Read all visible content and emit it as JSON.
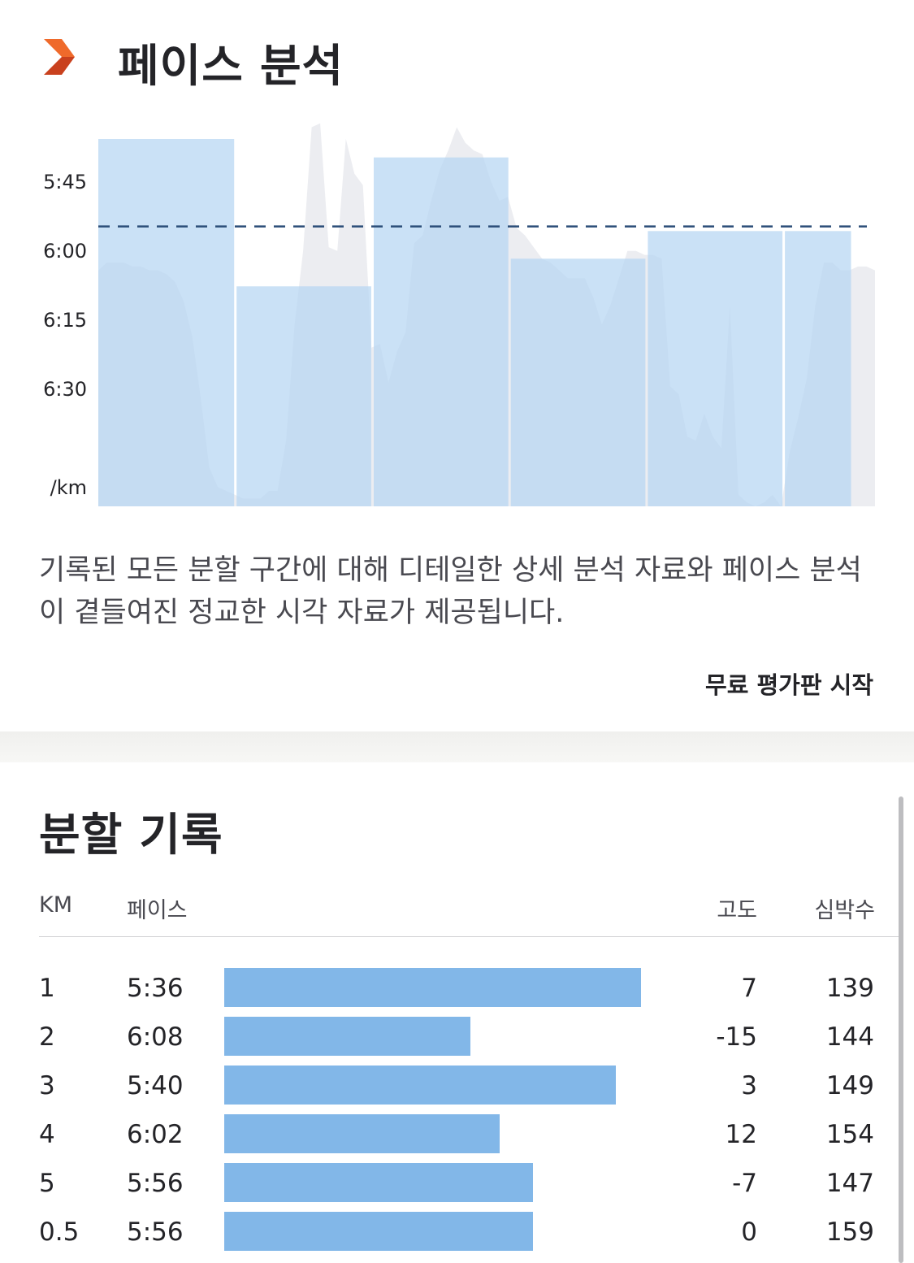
{
  "header": {
    "title": "페이스 분석",
    "icon": "orange-chevron-logo-icon"
  },
  "chart_data": {
    "type": "bar",
    "y_axis_ticks": [
      "5:45",
      "6:00",
      "6:15",
      "6:30"
    ],
    "y_unit": "/km",
    "y_range_sec": [
      327,
      414
    ],
    "reverse_y": true,
    "average_pace_sec": 355,
    "categories": [
      "1",
      "2",
      "3",
      "4",
      "5",
      "0.5"
    ],
    "bar_widths_km": [
      1,
      1,
      1,
      1,
      1,
      0.5
    ],
    "pace_sec": [
      336,
      368,
      340,
      362,
      356,
      356
    ],
    "pace_labels": [
      "5:36",
      "6:08",
      "5:40",
      "6:02",
      "5:56",
      "5:56"
    ],
    "elevation_profile": [
      61,
      63,
      63,
      63,
      62,
      62,
      61,
      61,
      60,
      58,
      53,
      44,
      28,
      10,
      5,
      4,
      3,
      2,
      2,
      2,
      4,
      4,
      17,
      47,
      66,
      98,
      99,
      67,
      66,
      95,
      86,
      83,
      41,
      42,
      32,
      40,
      45,
      68,
      70,
      79,
      87,
      92,
      98,
      94,
      92,
      91,
      84,
      79,
      80,
      72,
      70,
      67,
      64,
      63,
      61,
      59,
      59,
      59,
      54,
      47,
      52,
      59,
      66,
      66,
      65,
      65,
      64,
      31,
      29,
      18,
      17,
      24,
      18,
      15,
      52,
      3,
      1,
      0,
      1,
      3,
      0,
      14,
      23,
      33,
      52,
      63,
      63,
      61,
      61,
      62,
      62,
      61
    ],
    "colors": {
      "bar": "#b6d5f2",
      "elevation": "#ecedf1",
      "average_line": "#2b4d78"
    }
  },
  "description": "기록된 모든 분할 구간에 대해 디테일한 상세 분석 자료와 페이스 분석이 곁들여진 정교한 시각 자료가 제공됩니다.",
  "cta": {
    "label": "무료 평가판 시작"
  },
  "splits": {
    "title": "분할 기록",
    "headers": {
      "km": "KM",
      "pace": "페이스",
      "elevation": "고도",
      "hr": "심박수"
    },
    "bar_color": "#82b7e8",
    "rows": [
      {
        "km": "1",
        "pace": "5:36",
        "pace_fraction": 1.0,
        "elevation": "7",
        "hr": "139"
      },
      {
        "km": "2",
        "pace": "6:08",
        "pace_fraction": 0.59,
        "elevation": "-15",
        "hr": "144"
      },
      {
        "km": "3",
        "pace": "5:40",
        "pace_fraction": 0.94,
        "elevation": "3",
        "hr": "149"
      },
      {
        "km": "4",
        "pace": "6:02",
        "pace_fraction": 0.66,
        "elevation": "12",
        "hr": "154"
      },
      {
        "km": "5",
        "pace": "5:56",
        "pace_fraction": 0.74,
        "elevation": "-7",
        "hr": "147"
      },
      {
        "km": "0.5",
        "pace": "5:56",
        "pace_fraction": 0.74,
        "elevation": "0",
        "hr": "159"
      }
    ]
  }
}
